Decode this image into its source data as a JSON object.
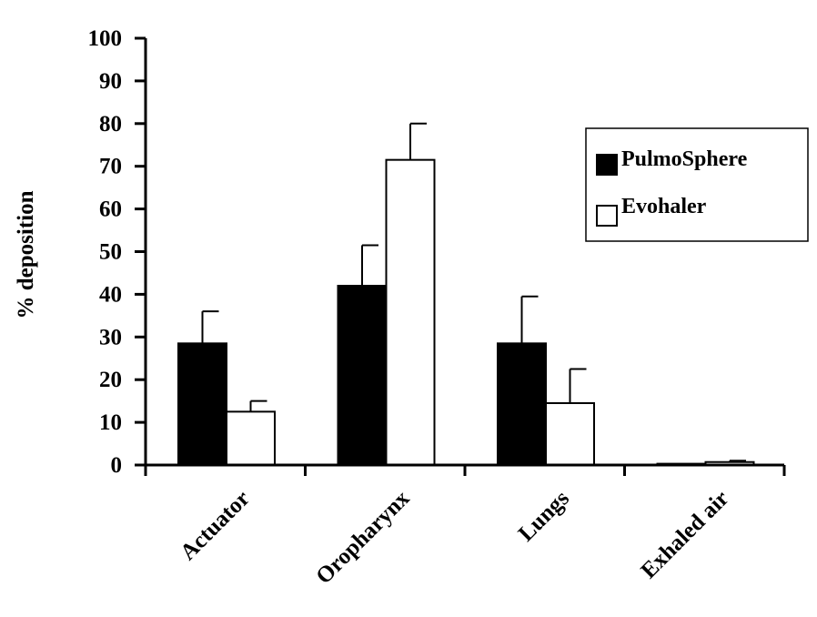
{
  "chart_data": {
    "type": "bar",
    "title": "",
    "xlabel": "",
    "ylabel": "% deposition",
    "ylim": [
      0,
      100
    ],
    "yticks": [
      0,
      10,
      20,
      30,
      40,
      50,
      60,
      70,
      80,
      90,
      100
    ],
    "categories": [
      "Actuator",
      "Oropharynx",
      "Lungs",
      "Exhaled air"
    ],
    "series": [
      {
        "name": "PulmoSphere",
        "values": [
          28.5,
          42,
          28.5,
          0.3
        ],
        "errors": [
          7.5,
          9.5,
          11,
          0
        ],
        "color": "#000000"
      },
      {
        "name": "Evohaler",
        "values": [
          12.5,
          71.5,
          14.5,
          0.7
        ],
        "errors": [
          2.5,
          8.5,
          8,
          0.3
        ],
        "color": "#ffffff"
      }
    ],
    "legend": {
      "position": "right"
    },
    "grid": false
  }
}
